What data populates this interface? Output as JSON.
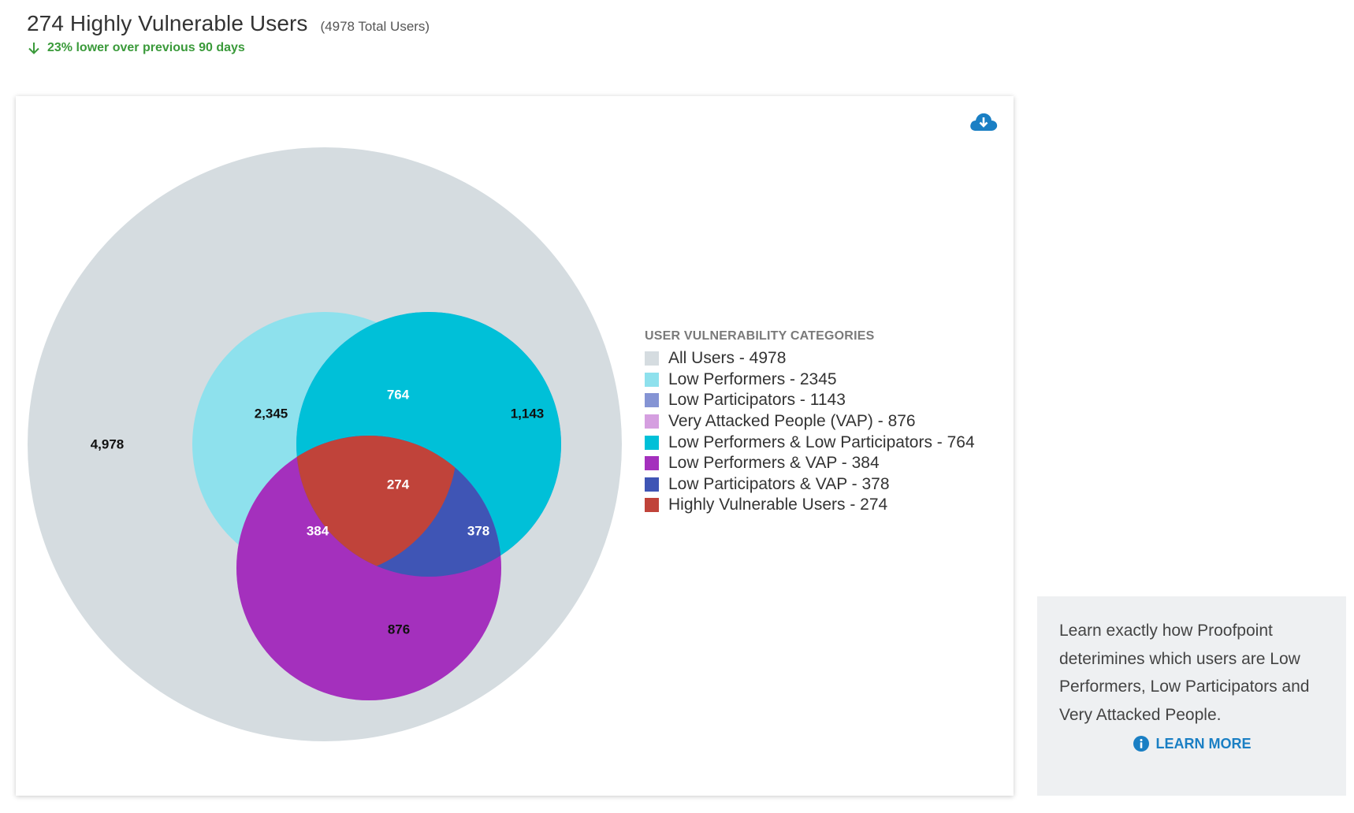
{
  "header": {
    "title": "274 Highly Vulnerable Users",
    "total": "(4978 Total Users)",
    "trend_text": "23% lower over previous 90 days",
    "trend_color": "#3a9a3a"
  },
  "download": {
    "icon": "cloud-download-icon",
    "color": "#1a7fc4"
  },
  "chart_data": {
    "type": "venn",
    "legend_title": "USER VULNERABILITY CATEGORIES",
    "legend_placement": "right",
    "regions": [
      {
        "name": "All Users",
        "count": 4978,
        "label": "4,978",
        "color": "#d5dce0",
        "legend": "All Users - 4978"
      },
      {
        "name": "Low Performers",
        "count": 2345,
        "label": "2,345",
        "color": "#8ee1ed",
        "legend": "Low Performers - 2345"
      },
      {
        "name": "Low Participators",
        "count": 1143,
        "label": "1,143",
        "color": "#8594d4",
        "legend": "Low Participators - 1143"
      },
      {
        "name": "Very Attacked People (VAP)",
        "count": 876,
        "label": "876",
        "color": "#d59fe0",
        "legend": "Very Attacked People (VAP) - 876"
      },
      {
        "name": "Low Performers & Low Participators",
        "count": 764,
        "label": "764",
        "color": "#00c0d8",
        "legend": "Low Performers & Low Participators - 764"
      },
      {
        "name": "Low Performers & VAP",
        "count": 384,
        "label": "384",
        "color": "#a430bd",
        "legend": "Low Performers & VAP - 384"
      },
      {
        "name": "Low Participators & VAP",
        "count": 378,
        "label": "378",
        "color": "#3f55b5",
        "legend": "Low Participators & VAP - 378"
      },
      {
        "name": "Highly Vulnerable Users",
        "count": 274,
        "label": "274",
        "color": "#c0433a",
        "legend": "Highly Vulnerable Users - 274"
      }
    ]
  },
  "info": {
    "text": "Learn exactly how Proofpoint deterimines which users are Low Performers, Low Participators and Very Attacked People.",
    "link_label": "LEARN MORE",
    "link_color": "#1a7fc4"
  }
}
